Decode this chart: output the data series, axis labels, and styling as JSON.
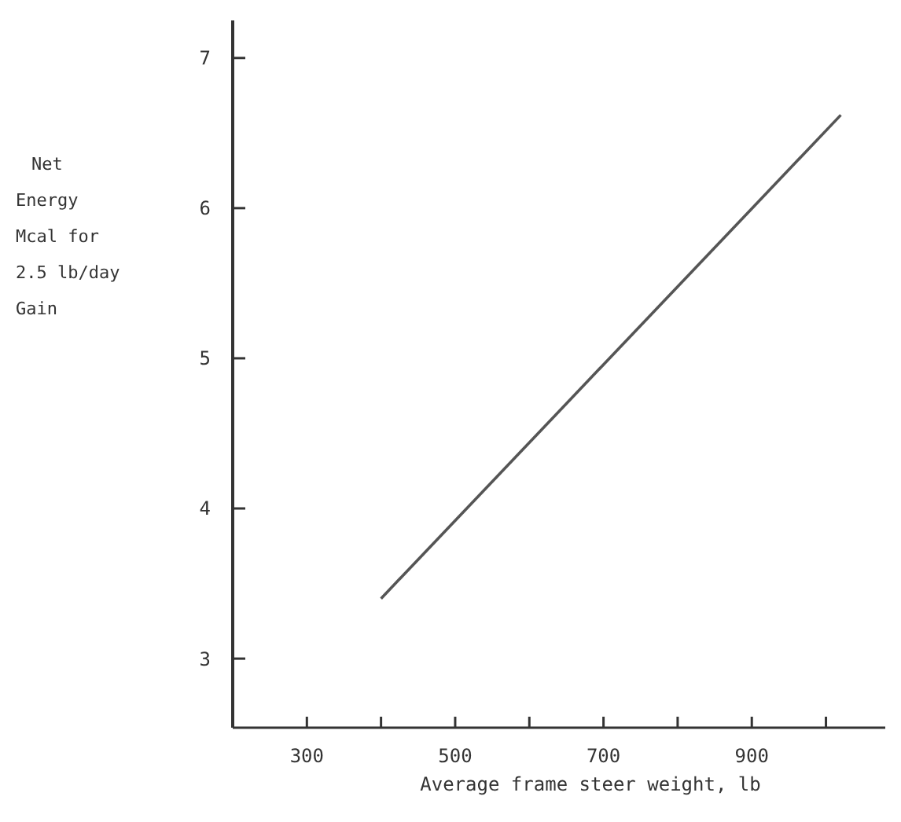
{
  "chart_data": {
    "type": "line",
    "xlabel": "Average frame steer weight, lb",
    "ylabel": "Net\nEnergy\nMcal for\n2.5 lb/day\nGain",
    "x": [
      400,
      1020
    ],
    "values": [
      3.4,
      6.62
    ],
    "color": "#555555",
    "xlim": [
      200,
      1080
    ],
    "xticks": [
      300,
      {
        "value": 400,
        "label": null
      },
      500,
      {
        "value": 600,
        "label": null
      },
      700,
      {
        "value": 800,
        "label": null
      },
      900,
      {
        "value": 1000,
        "label": null
      }
    ],
    "ylim": [
      2.54,
      7.25
    ],
    "yticks": [
      3,
      4,
      5,
      6,
      7
    ],
    "grid": false,
    "marker": "none",
    "line_style": "solid"
  }
}
